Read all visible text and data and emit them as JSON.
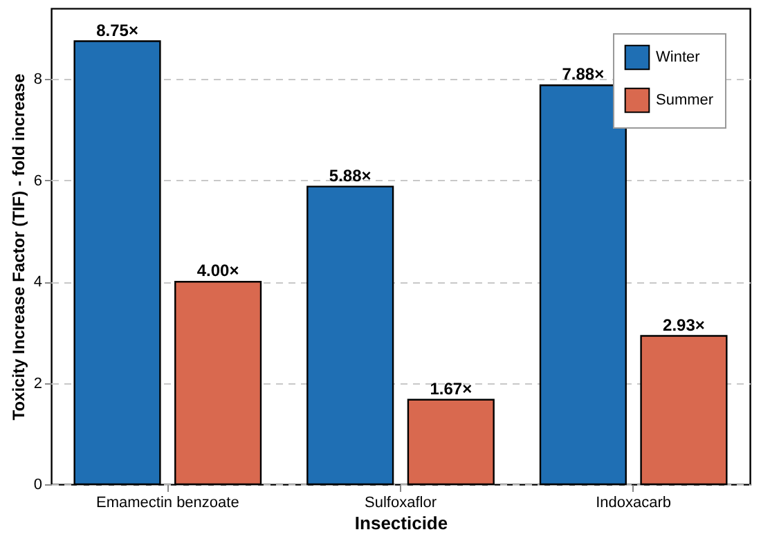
{
  "chart_data": {
    "type": "bar",
    "xlabel": "Insecticide",
    "ylabel": "Toxicity Increase Factor (TIF) - fold increase",
    "categories": [
      "Emamectin benzoate",
      "Sulfoxaflor",
      "Indoxacarb"
    ],
    "series": [
      {
        "name": "Winter",
        "color": "#1f6fb4",
        "values": [
          8.75,
          5.88,
          7.88
        ],
        "value_labels": [
          "8.75×",
          "5.88×",
          "7.88×"
        ]
      },
      {
        "name": "Summer",
        "color": "#d9694f",
        "values": [
          4.0,
          1.67,
          2.93
        ],
        "value_labels": [
          "4.00×",
          "1.67×",
          "2.93×"
        ]
      }
    ],
    "ylim": [
      0,
      9.4
    ],
    "yticks": [
      0,
      2,
      4,
      6,
      8
    ],
    "grid": "y",
    "legend": "top right"
  }
}
